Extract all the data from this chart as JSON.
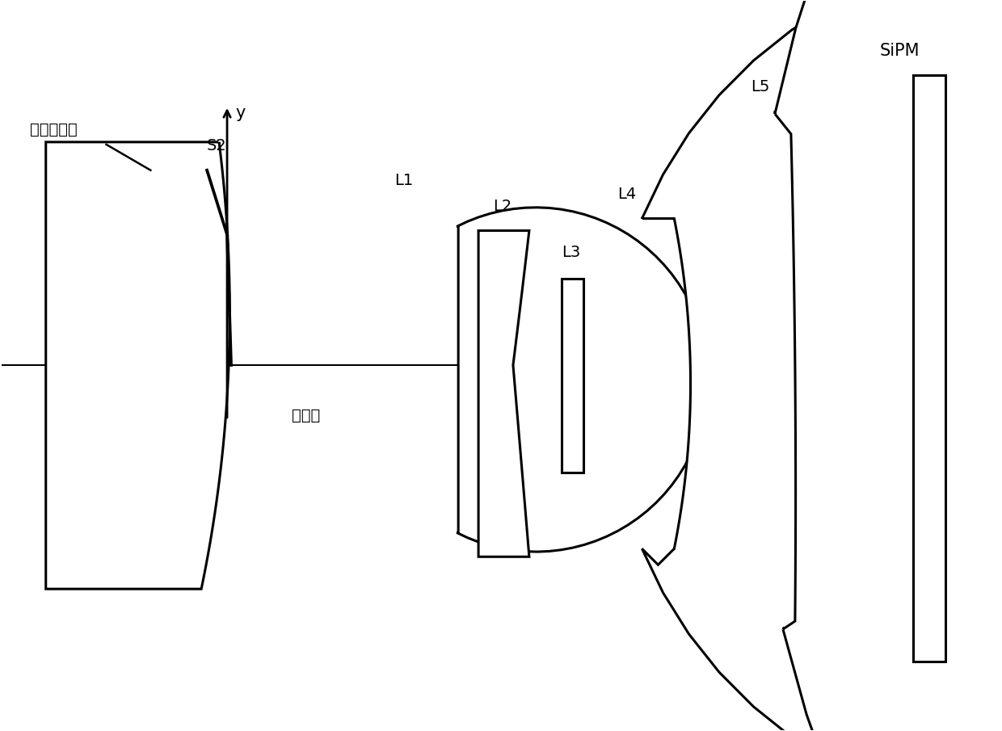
{
  "bg_color": "#ffffff",
  "line_color": "#000000",
  "line_width": 2.2,
  "figsize": [
    12.4,
    9.05
  ],
  "dpi": 100,
  "labels": {
    "crystal": "圆柱体主体",
    "s2": "S2",
    "axis_label": "中轴线",
    "y_label": "y",
    "L1": "L1",
    "L2": "L2",
    "L3": "L3",
    "L4": "L4",
    "L5": "L5",
    "SiPM": "SiPM"
  }
}
